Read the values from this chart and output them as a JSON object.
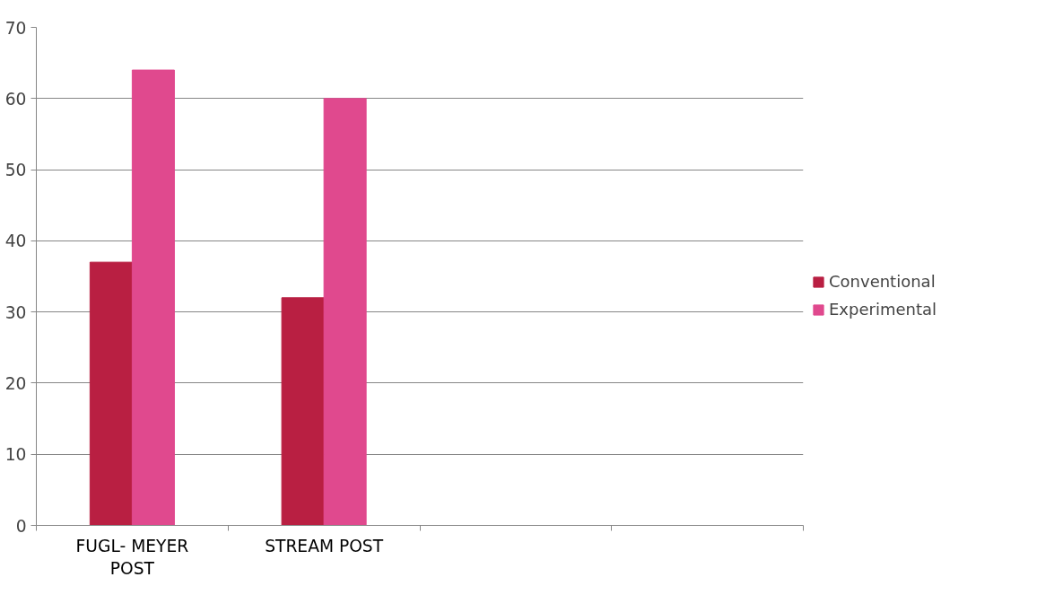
{
  "chart_data": {
    "type": "bar",
    "categories": [
      "FUGL- MEYER POST",
      "STREAM POST",
      null,
      null
    ],
    "series": [
      {
        "name": "Conventional",
        "color": "#b91f42",
        "values": [
          37,
          32,
          null,
          null
        ]
      },
      {
        "name": "Experimental",
        "color": "#e0498e",
        "values": [
          64,
          60,
          null,
          null
        ]
      }
    ],
    "ylim": [
      0,
      70
    ],
    "yticks": [
      0,
      10,
      20,
      30,
      40,
      50,
      60,
      70
    ],
    "grid": "y",
    "legend": "right"
  }
}
